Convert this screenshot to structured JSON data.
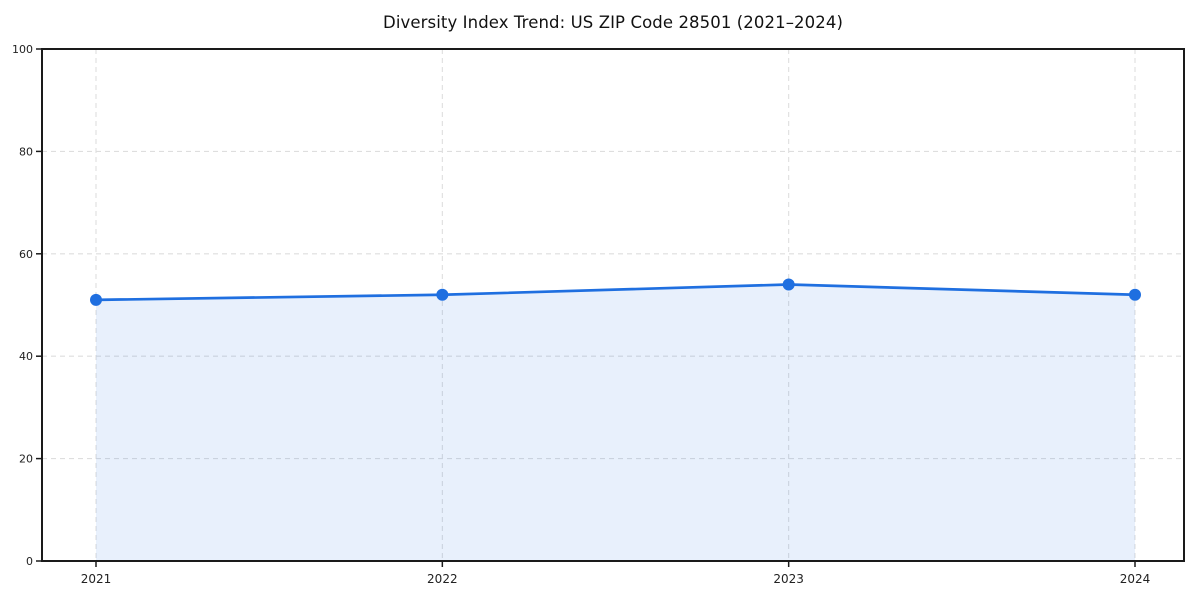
{
  "title": "Diversity Index Trend: US ZIP Code 28501 (2021–2024)",
  "colors": {
    "background": "#ffffff",
    "line": "#1f6fe0",
    "marker": "#1f6fe0",
    "area_fill_base": "#1f6fe0",
    "area_fill_rendered": "#e9f1fc",
    "grid": "#dedede",
    "spine": "#1a1a1a",
    "tick_label": "#222222",
    "title_text": "#111111"
  },
  "chart_data": {
    "type": "line",
    "title": "Diversity Index Trend: US ZIP Code 28501 (2021–2024)",
    "x": [
      "2021",
      "2022",
      "2023",
      "2024"
    ],
    "series": [
      {
        "name": "Diversity Index",
        "values": [
          51,
          52,
          54,
          52
        ]
      }
    ],
    "xlabel": "",
    "ylabel": "",
    "ylim": [
      0,
      100
    ],
    "yticks": [
      0,
      20,
      40,
      60,
      80,
      100
    ],
    "grid": true,
    "grid_style": "dashed",
    "legend": "none",
    "marker": "circle",
    "area_fill": true,
    "fill_opacity": 0.1
  }
}
